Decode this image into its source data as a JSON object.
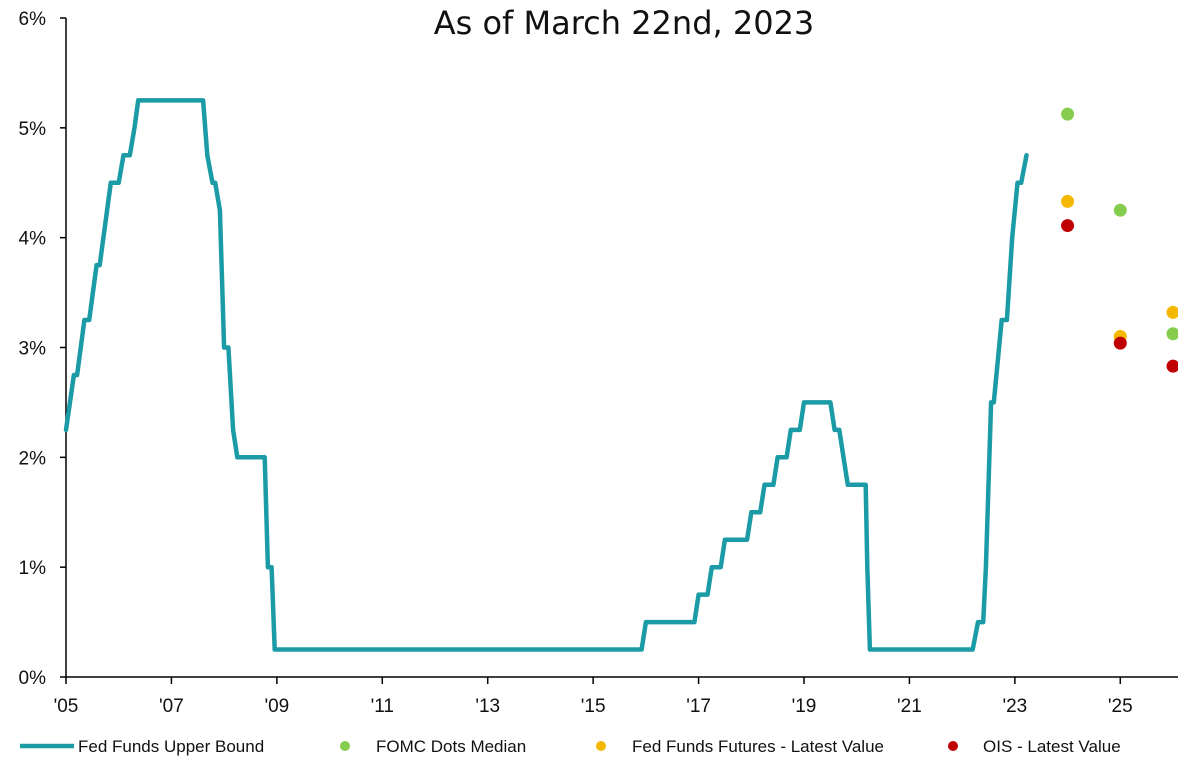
{
  "chart_data": {
    "type": "line",
    "title": "As of March 22nd, 2023",
    "xlabel": "",
    "ylabel": "",
    "xlim": [
      2005.0,
      2026.0
    ],
    "ylim": [
      0,
      6
    ],
    "x_ticks": [
      2005,
      2007,
      2009,
      2011,
      2013,
      2015,
      2017,
      2019,
      2021,
      2023,
      2025
    ],
    "x_tick_labels": [
      "'05",
      "'07",
      "'09",
      "'11",
      "'13",
      "'15",
      "'17",
      "'19",
      "'21",
      "'23",
      "'25"
    ],
    "y_ticks": [
      0,
      1,
      2,
      3,
      4,
      5,
      6
    ],
    "y_tick_labels": [
      "0%",
      "1%",
      "2%",
      "3%",
      "4%",
      "5%",
      "6%"
    ],
    "grid": false,
    "legend_position": "bottom",
    "series": [
      {
        "name": "Fed Funds Upper Bound",
        "kind": "line",
        "color": "#1a9ba6",
        "x": [
          2005.0,
          2005.15,
          2005.21,
          2005.35,
          2005.44,
          2005.58,
          2005.64,
          2005.78,
          2005.85,
          2006.0,
          2006.09,
          2006.21,
          2006.3,
          2006.37,
          2006.44,
          2006.5,
          2007.6,
          2007.68,
          2007.78,
          2007.83,
          2007.92,
          2008.0,
          2008.04,
          2008.08,
          2008.17,
          2008.25,
          2008.33,
          2008.77,
          2008.83,
          2008.9,
          2008.96,
          2015.92,
          2016.0,
          2016.92,
          2017.0,
          2017.17,
          2017.25,
          2017.42,
          2017.5,
          2017.92,
          2018.0,
          2018.17,
          2018.25,
          2018.42,
          2018.5,
          2018.67,
          2018.75,
          2018.92,
          2019.0,
          2019.5,
          2019.58,
          2019.67,
          2019.75,
          2019.83,
          2019.92,
          2020.17,
          2020.2,
          2020.25,
          2022.2,
          2022.3,
          2022.4,
          2022.45,
          2022.55,
          2022.6,
          2022.75,
          2022.85,
          2022.95,
          2023.05,
          2023.12,
          2023.22
        ],
        "values": [
          2.25,
          2.75,
          2.75,
          3.25,
          3.25,
          3.75,
          3.75,
          4.25,
          4.5,
          4.5,
          4.75,
          4.75,
          5.0,
          5.25,
          5.25,
          5.25,
          5.25,
          4.75,
          4.5,
          4.5,
          4.25,
          3.0,
          3.0,
          3.0,
          2.25,
          2.0,
          2.0,
          2.0,
          1.0,
          1.0,
          0.25,
          0.25,
          0.5,
          0.5,
          0.75,
          0.75,
          1.0,
          1.0,
          1.25,
          1.25,
          1.5,
          1.5,
          1.75,
          1.75,
          2.0,
          2.0,
          2.25,
          2.25,
          2.5,
          2.5,
          2.25,
          2.25,
          2.0,
          1.75,
          1.75,
          1.75,
          1.0,
          0.25,
          0.25,
          0.5,
          0.5,
          1.0,
          2.5,
          2.5,
          3.25,
          3.25,
          4.0,
          4.5,
          4.5,
          4.75
        ]
      },
      {
        "name": "FOMC Dots Median",
        "kind": "scatter",
        "color": "#86cc4e",
        "x": [
          2024.0,
          2025.0,
          2026.0
        ],
        "values": [
          5.125,
          4.25,
          3.125
        ]
      },
      {
        "name": "Fed Funds Futures - Latest Value",
        "kind": "scatter",
        "color": "#f5b800",
        "x": [
          2024.0,
          2025.0,
          2026.0
        ],
        "values": [
          4.33,
          3.1,
          3.32
        ]
      },
      {
        "name": "OIS - Latest Value",
        "kind": "scatter",
        "color": "#c00000",
        "x": [
          2024.0,
          2025.0,
          2026.0
        ],
        "values": [
          4.11,
          3.04,
          2.83
        ]
      }
    ]
  }
}
